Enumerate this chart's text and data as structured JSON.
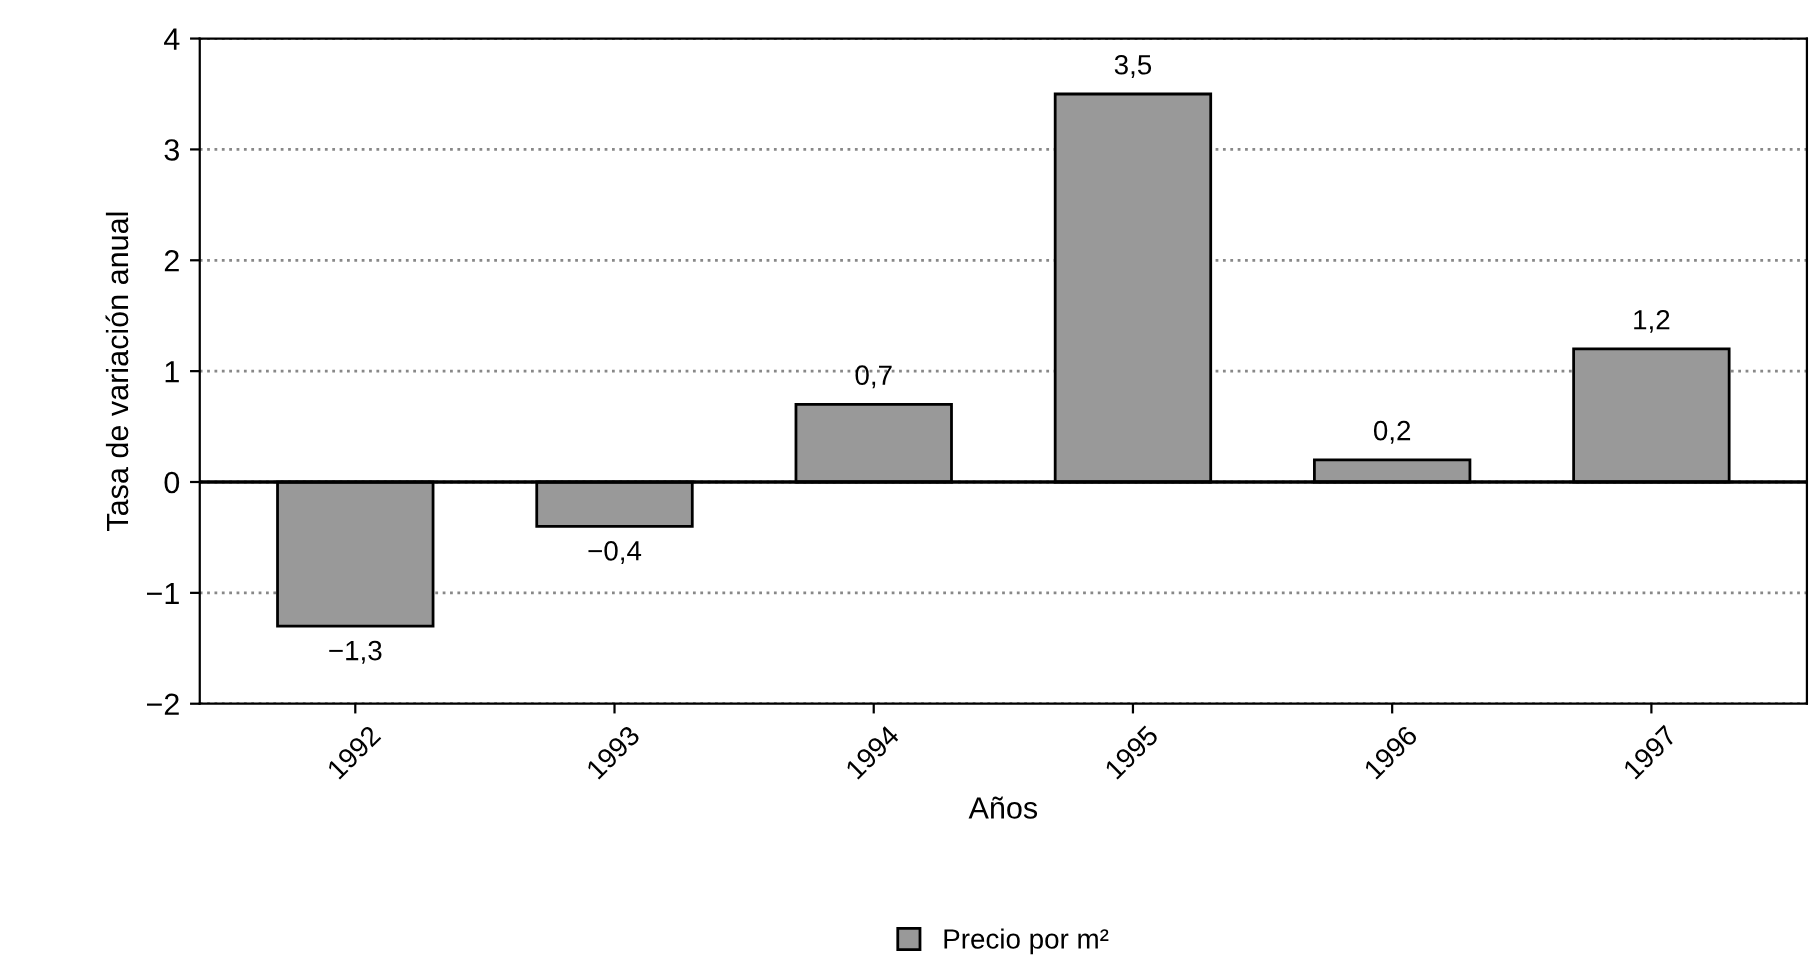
{
  "chart_data": {
    "type": "bar",
    "xlabel": "Años",
    "ylabel": "Tasa de variación anual",
    "categories": [
      "1992",
      "1993",
      "1994",
      "1995",
      "1996",
      "1997"
    ],
    "series": [
      {
        "name": "Precio por m²",
        "color": "#999999",
        "values": [
          -1.3,
          -0.4,
          0.7,
          3.5,
          0.2,
          1.2
        ],
        "value_labels": [
          "−1,3",
          "−0,4",
          "0,7",
          "3,5",
          "0,2",
          "1,2"
        ]
      }
    ],
    "ylim": [
      -2,
      4
    ],
    "yticks": [
      {
        "value": -2,
        "label": "−2"
      },
      {
        "value": -1,
        "label": "−1"
      },
      0,
      1,
      2,
      3,
      4
    ],
    "grid": "y",
    "legend": "bottom",
    "ref_lines": [
      {
        "axis": "y",
        "value": 0,
        "color": "#000000",
        "line_style": "solid"
      }
    ]
  }
}
